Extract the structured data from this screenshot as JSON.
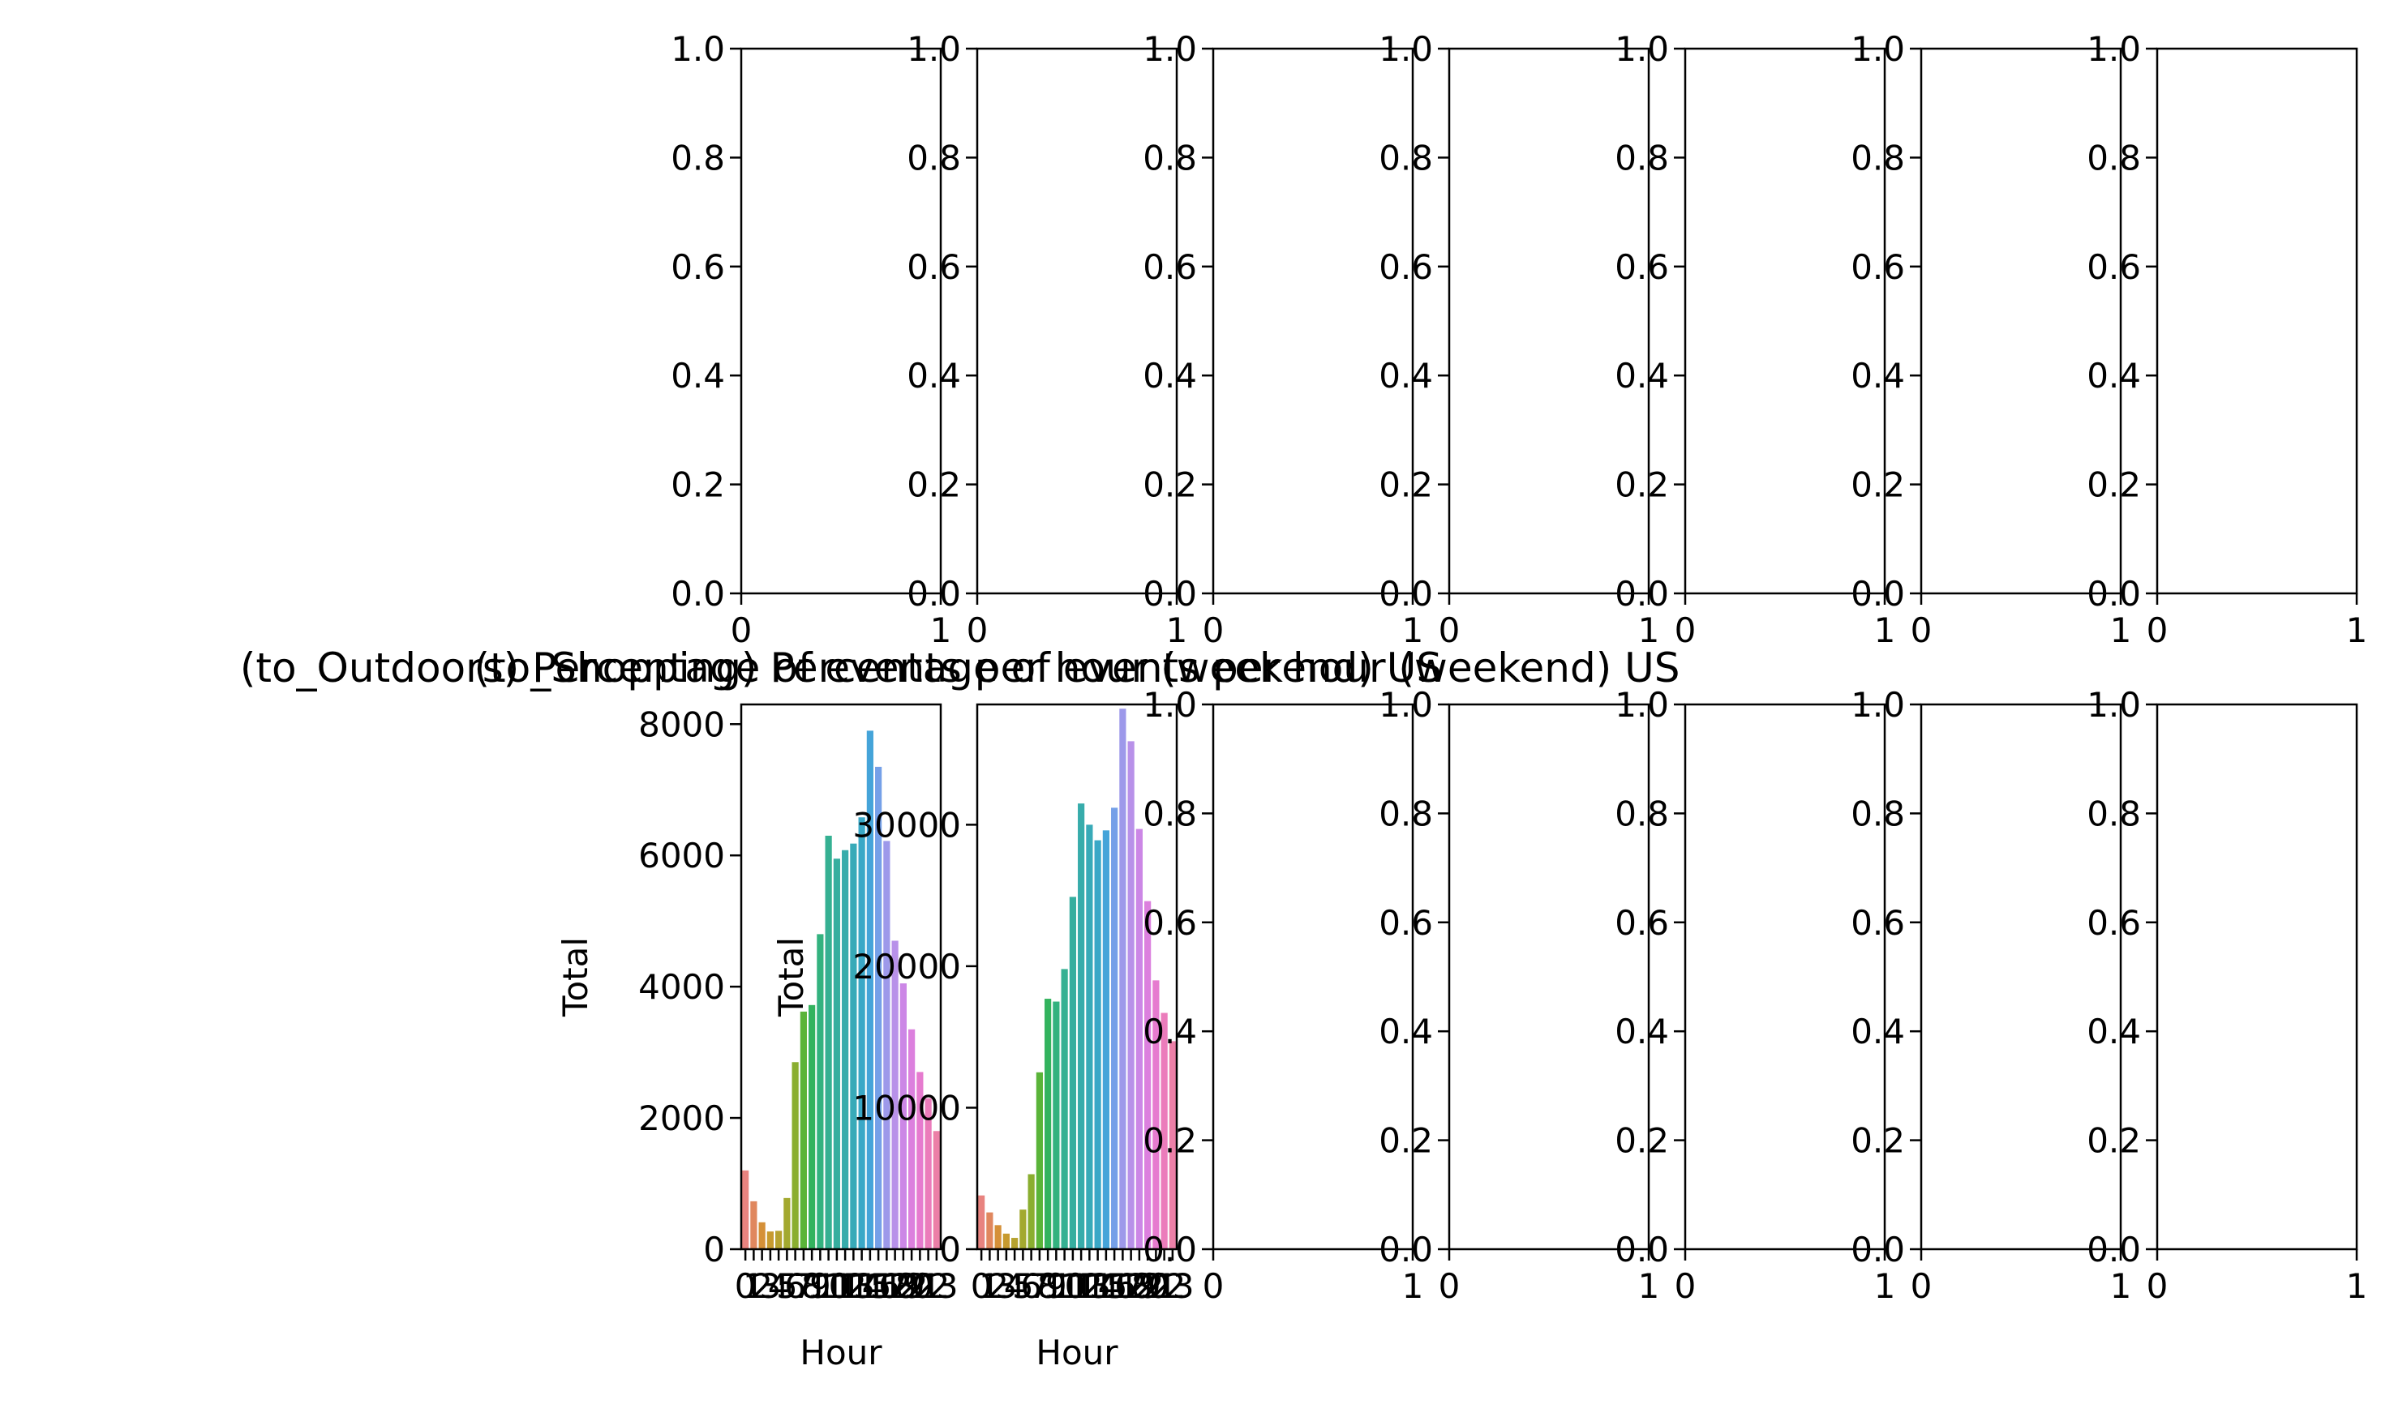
{
  "chart_data": [
    {
      "type": "empty",
      "row": 0,
      "col": 0,
      "xlim": [
        0,
        1
      ],
      "ylim": [
        0,
        1
      ],
      "xticks": [
        "0",
        "1"
      ],
      "yticks": [
        "0.0",
        "0.2",
        "0.4",
        "0.6",
        "0.8",
        "1.0"
      ]
    },
    {
      "type": "empty",
      "row": 0,
      "col": 1,
      "xlim": [
        0,
        1
      ],
      "ylim": [
        0,
        1
      ],
      "xticks": [
        "0",
        "1"
      ],
      "yticks": [
        "0.0",
        "0.2",
        "0.4",
        "0.6",
        "0.8",
        "1.0"
      ]
    },
    {
      "type": "empty",
      "row": 0,
      "col": 2,
      "xlim": [
        0,
        1
      ],
      "ylim": [
        0,
        1
      ],
      "xticks": [
        "0",
        "1"
      ],
      "yticks": [
        "0.0",
        "0.2",
        "0.4",
        "0.6",
        "0.8",
        "1.0"
      ]
    },
    {
      "type": "empty",
      "row": 0,
      "col": 3,
      "xlim": [
        0,
        1
      ],
      "ylim": [
        0,
        1
      ],
      "xticks": [
        "0",
        "1"
      ],
      "yticks": [
        "0.0",
        "0.2",
        "0.4",
        "0.6",
        "0.8",
        "1.0"
      ]
    },
    {
      "type": "empty",
      "row": 0,
      "col": 4,
      "xlim": [
        0,
        1
      ],
      "ylim": [
        0,
        1
      ],
      "xticks": [
        "0",
        "1"
      ],
      "yticks": [
        "0.0",
        "0.2",
        "0.4",
        "0.6",
        "0.8",
        "1.0"
      ]
    },
    {
      "type": "empty",
      "row": 0,
      "col": 5,
      "xlim": [
        0,
        1
      ],
      "ylim": [
        0,
        1
      ],
      "xticks": [
        "0",
        "1"
      ],
      "yticks": [
        "0.0",
        "0.2",
        "0.4",
        "0.6",
        "0.8",
        "1.0"
      ]
    },
    {
      "type": "empty",
      "row": 0,
      "col": 6,
      "xlim": [
        0,
        1
      ],
      "ylim": [
        0,
        1
      ],
      "xticks": [
        "0",
        "1"
      ],
      "yticks": [
        "0.0",
        "0.2",
        "0.4",
        "0.6",
        "0.8",
        "1.0"
      ]
    },
    {
      "type": "bar",
      "row": 1,
      "col": 0,
      "title": "(to_Outdoors) Percentage of events per hour (weekend) US",
      "xlabel": "Hour",
      "ylabel": "Total",
      "categories": [
        0,
        1,
        2,
        3,
        4,
        5,
        6,
        7,
        8,
        9,
        10,
        11,
        12,
        13,
        14,
        15,
        16,
        17,
        18,
        19,
        20,
        21,
        22,
        23
      ],
      "xticks": [
        "0",
        "1",
        "2",
        "3",
        "4",
        "5",
        "6",
        "7",
        "8",
        "9",
        "10",
        "11",
        "12",
        "13",
        "14",
        "15",
        "16",
        "17",
        "18",
        "19",
        "20",
        "21",
        "22",
        "23"
      ],
      "values": [
        1200,
        730,
        410,
        270,
        280,
        780,
        2850,
        3620,
        3720,
        4800,
        6300,
        5950,
        6080,
        6180,
        6580,
        7900,
        7350,
        6220,
        4700,
        4050,
        3350,
        2700,
        2300,
        1800
      ],
      "ylim": [
        0,
        8300
      ],
      "yticks": [
        0,
        2000,
        4000,
        6000,
        8000
      ],
      "ytick_labels": [
        "0",
        "2000",
        "4000",
        "6000",
        "8000"
      ]
    },
    {
      "type": "bar",
      "row": 1,
      "col": 1,
      "title": "(to_Shopping) Percentage of events per hour (weekend) US",
      "xlabel": "Hour",
      "ylabel": "Total",
      "categories": [
        0,
        1,
        2,
        3,
        4,
        5,
        6,
        7,
        8,
        9,
        10,
        11,
        12,
        13,
        14,
        15,
        16,
        17,
        18,
        19,
        20,
        21,
        22,
        23
      ],
      "xticks": [
        "0",
        "1",
        "2",
        "3",
        "4",
        "5",
        "6",
        "7",
        "8",
        "9",
        "10",
        "11",
        "12",
        "13",
        "14",
        "15",
        "16",
        "17",
        "18",
        "19",
        "20",
        "21",
        "22",
        "23"
      ],
      "values": [
        3800,
        2600,
        1700,
        1100,
        800,
        2800,
        5300,
        12500,
        17700,
        17500,
        19800,
        24900,
        31500,
        30000,
        28900,
        29600,
        31200,
        38200,
        35900,
        29700,
        24600,
        19000,
        16700,
        14700
      ],
      "ylim": [
        0,
        38500
      ],
      "yticks": [
        0,
        10000,
        20000,
        30000
      ],
      "ytick_labels": [
        "0",
        "10000",
        "20000",
        "30000"
      ]
    },
    {
      "type": "empty",
      "row": 1,
      "col": 2,
      "xlim": [
        0,
        1
      ],
      "ylim": [
        0,
        1
      ],
      "xticks": [
        "0",
        "1"
      ],
      "yticks": [
        "0.0",
        "0.2",
        "0.4",
        "0.6",
        "0.8",
        "1.0"
      ]
    },
    {
      "type": "empty",
      "row": 1,
      "col": 3,
      "xlim": [
        0,
        1
      ],
      "ylim": [
        0,
        1
      ],
      "xticks": [
        "0",
        "1"
      ],
      "yticks": [
        "0.0",
        "0.2",
        "0.4",
        "0.6",
        "0.8",
        "1.0"
      ]
    },
    {
      "type": "empty",
      "row": 1,
      "col": 4,
      "xlim": [
        0,
        1
      ],
      "ylim": [
        0,
        1
      ],
      "xticks": [
        "0",
        "1"
      ],
      "yticks": [
        "0.0",
        "0.2",
        "0.4",
        "0.6",
        "0.8",
        "1.0"
      ]
    },
    {
      "type": "empty",
      "row": 1,
      "col": 5,
      "xlim": [
        0,
        1
      ],
      "ylim": [
        0,
        1
      ],
      "xticks": [
        "0",
        "1"
      ],
      "yticks": [
        "0.0",
        "0.2",
        "0.4",
        "0.6",
        "0.8",
        "1.0"
      ]
    },
    {
      "type": "empty",
      "row": 1,
      "col": 6,
      "xlim": [
        0,
        1
      ],
      "ylim": [
        0,
        1
      ],
      "xticks": [
        "0",
        "1"
      ],
      "yticks": [
        "0.0",
        "0.2",
        "0.4",
        "0.6",
        "0.8",
        "1.0"
      ]
    }
  ]
}
